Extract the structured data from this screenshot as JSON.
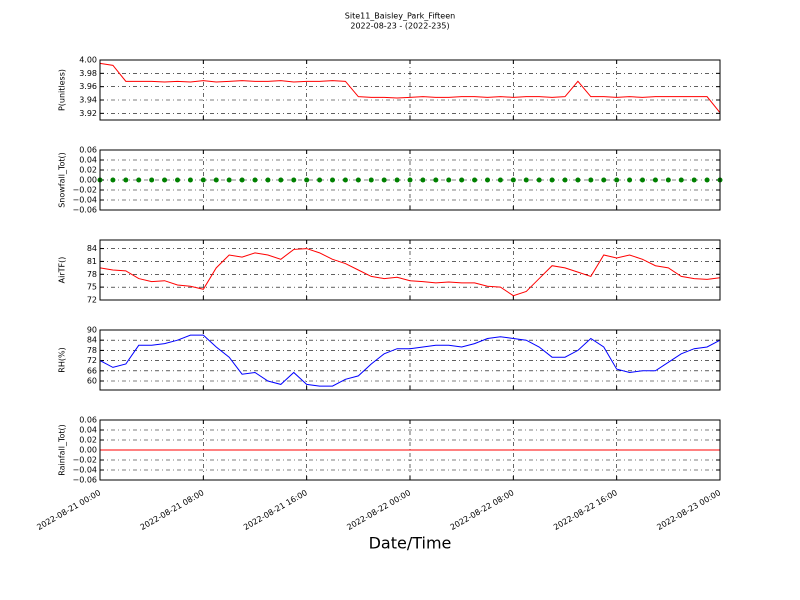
{
  "chart_data": [
    {
      "type": "line",
      "title": "Site11_Baisley_Park_Fifteen",
      "subtitle": "2022-08-23 - (2022-235)",
      "ylabel": "P(unitless)",
      "x": [
        "2022-08-21 00:00",
        "2022-08-21 01:00",
        "2022-08-21 02:00",
        "2022-08-21 03:00",
        "2022-08-21 04:00",
        "2022-08-21 05:00",
        "2022-08-21 06:00",
        "2022-08-21 07:00",
        "2022-08-21 08:00",
        "2022-08-21 09:00",
        "2022-08-21 10:00",
        "2022-08-21 11:00",
        "2022-08-21 12:00",
        "2022-08-21 13:00",
        "2022-08-21 14:00",
        "2022-08-21 15:00",
        "2022-08-21 16:00",
        "2022-08-21 17:00",
        "2022-08-21 18:00",
        "2022-08-21 19:00",
        "2022-08-21 20:00",
        "2022-08-21 21:00",
        "2022-08-21 22:00",
        "2022-08-21 23:00",
        "2022-08-22 00:00",
        "2022-08-22 01:00",
        "2022-08-22 02:00",
        "2022-08-22 03:00",
        "2022-08-22 04:00",
        "2022-08-22 05:00",
        "2022-08-22 06:00",
        "2022-08-22 07:00",
        "2022-08-22 08:00",
        "2022-08-22 09:00",
        "2022-08-22 10:00",
        "2022-08-22 11:00",
        "2022-08-22 12:00",
        "2022-08-22 13:00",
        "2022-08-22 14:00",
        "2022-08-22 15:00",
        "2022-08-22 16:00",
        "2022-08-22 17:00",
        "2022-08-22 18:00",
        "2022-08-22 19:00",
        "2022-08-22 20:00",
        "2022-08-22 21:00",
        "2022-08-22 22:00",
        "2022-08-22 23:00",
        "2022-08-23 00:00"
      ],
      "series": [
        {
          "color": "#ff0000",
          "values": [
            3.995,
            3.992,
            3.968,
            3.968,
            3.968,
            3.967,
            3.968,
            3.967,
            3.969,
            3.967,
            3.968,
            3.969,
            3.968,
            3.968,
            3.969,
            3.967,
            3.968,
            3.968,
            3.969,
            3.968,
            3.945,
            3.944,
            3.944,
            3.943,
            3.944,
            3.945,
            3.944,
            3.944,
            3.945,
            3.945,
            3.944,
            3.945,
            3.944,
            3.945,
            3.945,
            3.944,
            3.945,
            3.968,
            3.945,
            3.945,
            3.944,
            3.945,
            3.944,
            3.945,
            3.945,
            3.945,
            3.945,
            3.945,
            3.921
          ]
        }
      ],
      "ylim": [
        3.91,
        4.0
      ],
      "yticks": [
        3.92,
        3.94,
        3.96,
        3.98,
        {
          "value": 4.0,
          "label": "4.00"
        }
      ],
      "xlim": [
        "2022-08-21 00:00",
        "2022-08-23 00:00"
      ],
      "xticks": [
        "2022-08-21 00:00",
        "2022-08-21 08:00",
        "2022-08-21 16:00",
        "2022-08-22 00:00",
        "2022-08-22 08:00",
        "2022-08-22 16:00",
        "2022-08-23 00:00"
      ],
      "grid": true
    },
    {
      "type": "line",
      "ylabel": "Snowfall_Tot()",
      "x": [
        "2022-08-21 00:00",
        "2022-08-21 01:00",
        "2022-08-21 02:00",
        "2022-08-21 03:00",
        "2022-08-21 04:00",
        "2022-08-21 05:00",
        "2022-08-21 06:00",
        "2022-08-21 07:00",
        "2022-08-21 08:00",
        "2022-08-21 09:00",
        "2022-08-21 10:00",
        "2022-08-21 11:00",
        "2022-08-21 12:00",
        "2022-08-21 13:00",
        "2022-08-21 14:00",
        "2022-08-21 15:00",
        "2022-08-21 16:00",
        "2022-08-21 17:00",
        "2022-08-21 18:00",
        "2022-08-21 19:00",
        "2022-08-21 20:00",
        "2022-08-21 21:00",
        "2022-08-21 22:00",
        "2022-08-21 23:00",
        "2022-08-22 00:00",
        "2022-08-22 01:00",
        "2022-08-22 02:00",
        "2022-08-22 03:00",
        "2022-08-22 04:00",
        "2022-08-22 05:00",
        "2022-08-22 06:00",
        "2022-08-22 07:00",
        "2022-08-22 08:00",
        "2022-08-22 09:00",
        "2022-08-22 10:00",
        "2022-08-22 11:00",
        "2022-08-22 12:00",
        "2022-08-22 13:00",
        "2022-08-22 14:00",
        "2022-08-22 15:00",
        "2022-08-22 16:00",
        "2022-08-22 17:00",
        "2022-08-22 18:00",
        "2022-08-22 19:00",
        "2022-08-22 20:00",
        "2022-08-22 21:00",
        "2022-08-22 22:00",
        "2022-08-22 23:00",
        "2022-08-23 00:00"
      ],
      "series": [
        {
          "color": "#008000",
          "marker": "o",
          "values": [
            0,
            0,
            0,
            0,
            0,
            0,
            0,
            0,
            0,
            0,
            0,
            0,
            0,
            0,
            0,
            0,
            0,
            0,
            0,
            0,
            0,
            0,
            0,
            0,
            0,
            0,
            0,
            0,
            0,
            0,
            0,
            0,
            0,
            0,
            0,
            0,
            0,
            0,
            0,
            0,
            0,
            0,
            0,
            0,
            0,
            0,
            0,
            0,
            0
          ]
        }
      ],
      "ylim": [
        -0.06,
        0.06
      ],
      "yticks": [
        {
          "value": -0.06,
          "label": "−0.06"
        },
        {
          "value": -0.04,
          "label": "−0.04"
        },
        {
          "value": -0.02,
          "label": "−0.02"
        },
        {
          "value": 0,
          "label": "0.00"
        },
        0.02,
        0.04,
        0.06
      ],
      "xlim": [
        "2022-08-21 00:00",
        "2022-08-23 00:00"
      ],
      "xticks": [
        "2022-08-21 00:00",
        "2022-08-21 08:00",
        "2022-08-21 16:00",
        "2022-08-22 00:00",
        "2022-08-22 08:00",
        "2022-08-22 16:00",
        "2022-08-23 00:00"
      ],
      "grid": true
    },
    {
      "type": "line",
      "ylabel": "AirTF()",
      "x": [
        "2022-08-21 00:00",
        "2022-08-21 01:00",
        "2022-08-21 02:00",
        "2022-08-21 03:00",
        "2022-08-21 04:00",
        "2022-08-21 05:00",
        "2022-08-21 06:00",
        "2022-08-21 07:00",
        "2022-08-21 08:00",
        "2022-08-21 09:00",
        "2022-08-21 10:00",
        "2022-08-21 11:00",
        "2022-08-21 12:00",
        "2022-08-21 13:00",
        "2022-08-21 14:00",
        "2022-08-21 15:00",
        "2022-08-21 16:00",
        "2022-08-21 17:00",
        "2022-08-21 18:00",
        "2022-08-21 19:00",
        "2022-08-21 20:00",
        "2022-08-21 21:00",
        "2022-08-21 22:00",
        "2022-08-21 23:00",
        "2022-08-22 00:00",
        "2022-08-22 01:00",
        "2022-08-22 02:00",
        "2022-08-22 03:00",
        "2022-08-22 04:00",
        "2022-08-22 05:00",
        "2022-08-22 06:00",
        "2022-08-22 07:00",
        "2022-08-22 08:00",
        "2022-08-22 09:00",
        "2022-08-22 10:00",
        "2022-08-22 11:00",
        "2022-08-22 12:00",
        "2022-08-22 13:00",
        "2022-08-22 14:00",
        "2022-08-22 15:00",
        "2022-08-22 16:00",
        "2022-08-22 17:00",
        "2022-08-22 18:00",
        "2022-08-22 19:00",
        "2022-08-22 20:00",
        "2022-08-22 21:00",
        "2022-08-22 22:00",
        "2022-08-22 23:00",
        "2022-08-23 00:00"
      ],
      "series": [
        {
          "color": "#ff0000",
          "values": [
            79.5,
            79,
            78.8,
            77,
            76.3,
            76.5,
            75.5,
            75.2,
            74.5,
            79.5,
            82.5,
            82,
            83,
            82.5,
            81.5,
            83.8,
            84,
            83,
            81.5,
            80.5,
            79,
            77.5,
            77,
            77.3,
            76.5,
            76.3,
            76,
            76.2,
            76,
            76,
            75.2,
            75,
            73,
            74,
            77,
            80,
            79.5,
            78.5,
            77.5,
            82.5,
            81.8,
            82.5,
            81.5,
            80,
            79.5,
            77.5,
            77,
            76.8,
            77.2
          ]
        }
      ],
      "ylim": [
        72,
        86
      ],
      "yticks": [
        72,
        75,
        78,
        81,
        84
      ],
      "xlim": [
        "2022-08-21 00:00",
        "2022-08-23 00:00"
      ],
      "xticks": [
        "2022-08-21 00:00",
        "2022-08-21 08:00",
        "2022-08-21 16:00",
        "2022-08-22 00:00",
        "2022-08-22 08:00",
        "2022-08-22 16:00",
        "2022-08-23 00:00"
      ],
      "grid": true
    },
    {
      "type": "line",
      "ylabel": "RH(%)",
      "x": [
        "2022-08-21 00:00",
        "2022-08-21 01:00",
        "2022-08-21 02:00",
        "2022-08-21 03:00",
        "2022-08-21 04:00",
        "2022-08-21 05:00",
        "2022-08-21 06:00",
        "2022-08-21 07:00",
        "2022-08-21 08:00",
        "2022-08-21 09:00",
        "2022-08-21 10:00",
        "2022-08-21 11:00",
        "2022-08-21 12:00",
        "2022-08-21 13:00",
        "2022-08-21 14:00",
        "2022-08-21 15:00",
        "2022-08-21 16:00",
        "2022-08-21 17:00",
        "2022-08-21 18:00",
        "2022-08-21 19:00",
        "2022-08-21 20:00",
        "2022-08-21 21:00",
        "2022-08-21 22:00",
        "2022-08-21 23:00",
        "2022-08-22 00:00",
        "2022-08-22 01:00",
        "2022-08-22 02:00",
        "2022-08-22 03:00",
        "2022-08-22 04:00",
        "2022-08-22 05:00",
        "2022-08-22 06:00",
        "2022-08-22 07:00",
        "2022-08-22 08:00",
        "2022-08-22 09:00",
        "2022-08-22 10:00",
        "2022-08-22 11:00",
        "2022-08-22 12:00",
        "2022-08-22 13:00",
        "2022-08-22 14:00",
        "2022-08-22 15:00",
        "2022-08-22 16:00",
        "2022-08-22 17:00",
        "2022-08-22 18:00",
        "2022-08-22 19:00",
        "2022-08-22 20:00",
        "2022-08-22 21:00",
        "2022-08-22 22:00",
        "2022-08-22 23:00",
        "2022-08-23 00:00"
      ],
      "series": [
        {
          "color": "#0000ff",
          "values": [
            72,
            68,
            70,
            81,
            81,
            82,
            84,
            87,
            87,
            80,
            74,
            64,
            65,
            60,
            58,
            65,
            58,
            57,
            57,
            61,
            63,
            70,
            76,
            79,
            79,
            80,
            81,
            81,
            80,
            82,
            85,
            86,
            85,
            84,
            80,
            74,
            74,
            78,
            85,
            80,
            67,
            65,
            66,
            66,
            71,
            76,
            79,
            80,
            84
          ]
        }
      ],
      "ylim": [
        54.7,
        90
      ],
      "yticks": [
        60,
        66,
        72,
        78,
        84,
        90
      ],
      "xlim": [
        "2022-08-21 00:00",
        "2022-08-23 00:00"
      ],
      "xticks": [
        "2022-08-21 00:00",
        "2022-08-21 08:00",
        "2022-08-21 16:00",
        "2022-08-22 00:00",
        "2022-08-22 08:00",
        "2022-08-22 16:00",
        "2022-08-23 00:00"
      ],
      "grid": true
    },
    {
      "type": "line",
      "ylabel": "Rainfall_Tot()",
      "x_label": "Date/Time",
      "x": [
        "2022-08-21 00:00",
        "2022-08-21 01:00",
        "2022-08-21 02:00",
        "2022-08-21 03:00",
        "2022-08-21 04:00",
        "2022-08-21 05:00",
        "2022-08-21 06:00",
        "2022-08-21 07:00",
        "2022-08-21 08:00",
        "2022-08-21 09:00",
        "2022-08-21 10:00",
        "2022-08-21 11:00",
        "2022-08-21 12:00",
        "2022-08-21 13:00",
        "2022-08-21 14:00",
        "2022-08-21 15:00",
        "2022-08-21 16:00",
        "2022-08-21 17:00",
        "2022-08-21 18:00",
        "2022-08-21 19:00",
        "2022-08-21 20:00",
        "2022-08-21 21:00",
        "2022-08-21 22:00",
        "2022-08-21 23:00",
        "2022-08-22 00:00",
        "2022-08-22 01:00",
        "2022-08-22 02:00",
        "2022-08-22 03:00",
        "2022-08-22 04:00",
        "2022-08-22 05:00",
        "2022-08-22 06:00",
        "2022-08-22 07:00",
        "2022-08-22 08:00",
        "2022-08-22 09:00",
        "2022-08-22 10:00",
        "2022-08-22 11:00",
        "2022-08-22 12:00",
        "2022-08-22 13:00",
        "2022-08-22 14:00",
        "2022-08-22 15:00",
        "2022-08-22 16:00",
        "2022-08-22 17:00",
        "2022-08-22 18:00",
        "2022-08-22 19:00",
        "2022-08-22 20:00",
        "2022-08-22 21:00",
        "2022-08-22 22:00",
        "2022-08-22 23:00",
        "2022-08-23 00:00"
      ],
      "series": [
        {
          "color": "#ff0000",
          "values": [
            0,
            0,
            0,
            0,
            0,
            0,
            0,
            0,
            0,
            0,
            0,
            0,
            0,
            0,
            0,
            0,
            0,
            0,
            0,
            0,
            0,
            0,
            0,
            0,
            0,
            0,
            0,
            0,
            0,
            0,
            0,
            0,
            0,
            0,
            0,
            0,
            0,
            0,
            0,
            0,
            0,
            0,
            0,
            0,
            0,
            0,
            0,
            0,
            0
          ]
        }
      ],
      "ylim": [
        -0.06,
        0.06
      ],
      "yticks": [
        {
          "value": -0.06,
          "label": "−0.06"
        },
        {
          "value": -0.04,
          "label": "−0.04"
        },
        {
          "value": -0.02,
          "label": "−0.02"
        },
        {
          "value": 0,
          "label": "0.00"
        },
        0.02,
        0.04,
        0.06
      ],
      "xlim": [
        "2022-08-21 00:00",
        "2022-08-23 00:00"
      ],
      "xticks": [
        "2022-08-21 00:00",
        "2022-08-21 08:00",
        "2022-08-21 16:00",
        "2022-08-22 00:00",
        "2022-08-22 08:00",
        "2022-08-22 16:00",
        "2022-08-23 00:00"
      ],
      "grid": true
    }
  ]
}
